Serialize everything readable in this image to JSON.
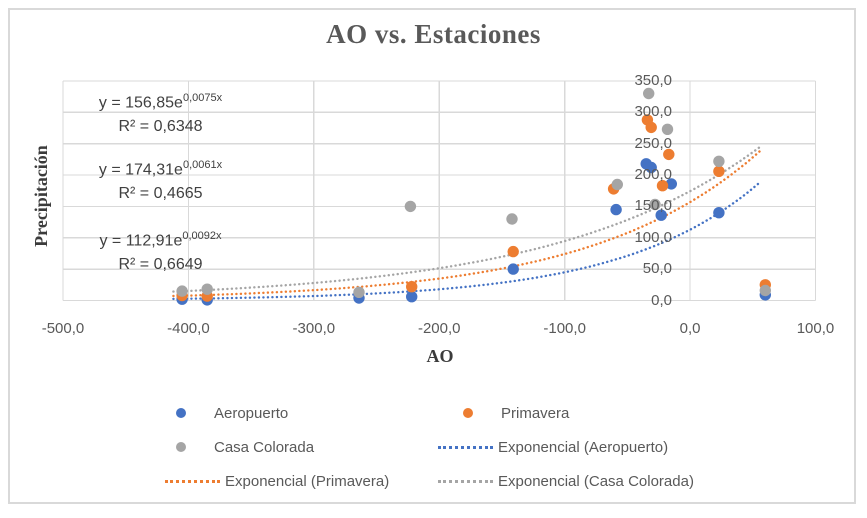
{
  "title": "AO vs. Estaciones",
  "colors": {
    "series_blue": "#4472C4",
    "series_orange": "#ED7D31",
    "series_gray": "#A5A5A5",
    "gridline": "#D9D9D9",
    "tick_text": "#595959",
    "equation_text": "#404040"
  },
  "equation_annotations": [
    {
      "base": "y = 156,85e",
      "exp": "0,0075x",
      "r2": "R² = 0,6348"
    },
    {
      "base": "y = 174,31e",
      "exp": "0,0061x",
      "r2": "R² = 0,4665"
    },
    {
      "base": "y = 112,91e",
      "exp": "0,0092x",
      "r2": "R² = 0,6649"
    }
  ],
  "legend": {
    "items": [
      {
        "label": "Aeropuerto",
        "marker": "dot",
        "color": "#4472C4"
      },
      {
        "label": "Primavera",
        "marker": "dot",
        "color": "#ED7D31"
      },
      {
        "label": "Casa Colorada",
        "marker": "dot",
        "color": "#A5A5A5"
      },
      {
        "label": "Exponencial (Aeropuerto)",
        "marker": "dotted-line",
        "color": "#4472C4"
      },
      {
        "label": "Exponencial (Primavera)",
        "marker": "dotted-line",
        "color": "#ED7D31"
      },
      {
        "label": "Exponencial (Casa Colorada)",
        "marker": "dotted-line",
        "color": "#A5A5A5"
      }
    ]
  },
  "chart_data": {
    "type": "scatter",
    "title": "AO vs. Estaciones",
    "xlabel": "AO",
    "ylabel": "Precipitación",
    "xlim": [
      -500,
      100
    ],
    "ylim": [
      0,
      350
    ],
    "x_ticks": [
      -500,
      -400,
      -300,
      -200,
      -100,
      0,
      100
    ],
    "x_tick_labels": [
      "-500,0",
      "-400,0",
      "-300,0",
      "-200,0",
      "-100,0",
      "0,0",
      "100,0"
    ],
    "y_ticks": [
      0,
      50,
      100,
      150,
      200,
      250,
      300,
      350
    ],
    "y_tick_labels": [
      "0,0",
      "50,0",
      "100,0",
      "150,0",
      "200,0",
      "250,0",
      "300,0",
      "350,0"
    ],
    "grid": true,
    "legend_position": "bottom",
    "series": [
      {
        "name": "Aeropuerto",
        "color": "#4472C4",
        "points": [
          [
            -405,
            2
          ],
          [
            -385,
            1
          ],
          [
            -264,
            4
          ],
          [
            -222,
            6
          ],
          [
            -141,
            50
          ],
          [
            -59,
            145
          ],
          [
            -35,
            218
          ],
          [
            -31,
            212
          ],
          [
            -23,
            136
          ],
          [
            -15,
            186
          ],
          [
            23,
            140
          ],
          [
            60,
            9
          ]
        ]
      },
      {
        "name": "Primavera",
        "color": "#ED7D31",
        "points": [
          [
            -405,
            8
          ],
          [
            -385,
            7
          ],
          [
            -222,
            22
          ],
          [
            -141,
            78
          ],
          [
            -61,
            178
          ],
          [
            -34,
            288
          ],
          [
            -31,
            276
          ],
          [
            -22,
            183
          ],
          [
            -17,
            233
          ],
          [
            23,
            206
          ],
          [
            60,
            25
          ]
        ]
      },
      {
        "name": "Casa Colorada",
        "color": "#A5A5A5",
        "points": [
          [
            -405,
            15
          ],
          [
            -385,
            18
          ],
          [
            -264,
            13
          ],
          [
            -223,
            150
          ],
          [
            -142,
            130
          ],
          [
            -58,
            185
          ],
          [
            -33,
            330
          ],
          [
            -28,
            153
          ],
          [
            -18,
            273
          ],
          [
            23,
            222
          ],
          [
            60,
            16
          ]
        ]
      }
    ],
    "trendlines": [
      {
        "name": "Exponencial (Aeropuerto)",
        "color": "#4472C4",
        "a": 112.91,
        "b": 0.0092,
        "equation": "y = 112,91e^(0,0092x)",
        "r2": 0.6649,
        "x_range": [
          -412,
          58
        ]
      },
      {
        "name": "Exponencial (Primavera)",
        "color": "#ED7D31",
        "a": 156.85,
        "b": 0.0075,
        "equation": "y = 156,85e^(0,0075x)",
        "r2": 0.6348,
        "x_range": [
          -412,
          58
        ]
      },
      {
        "name": "Exponencial (Casa Colorada)",
        "color": "#A5A5A5",
        "a": 174.31,
        "b": 0.0061,
        "equation": "y = 174,31e^(0,0061x)",
        "r2": 0.4665,
        "x_range": [
          -412,
          58
        ]
      }
    ]
  }
}
